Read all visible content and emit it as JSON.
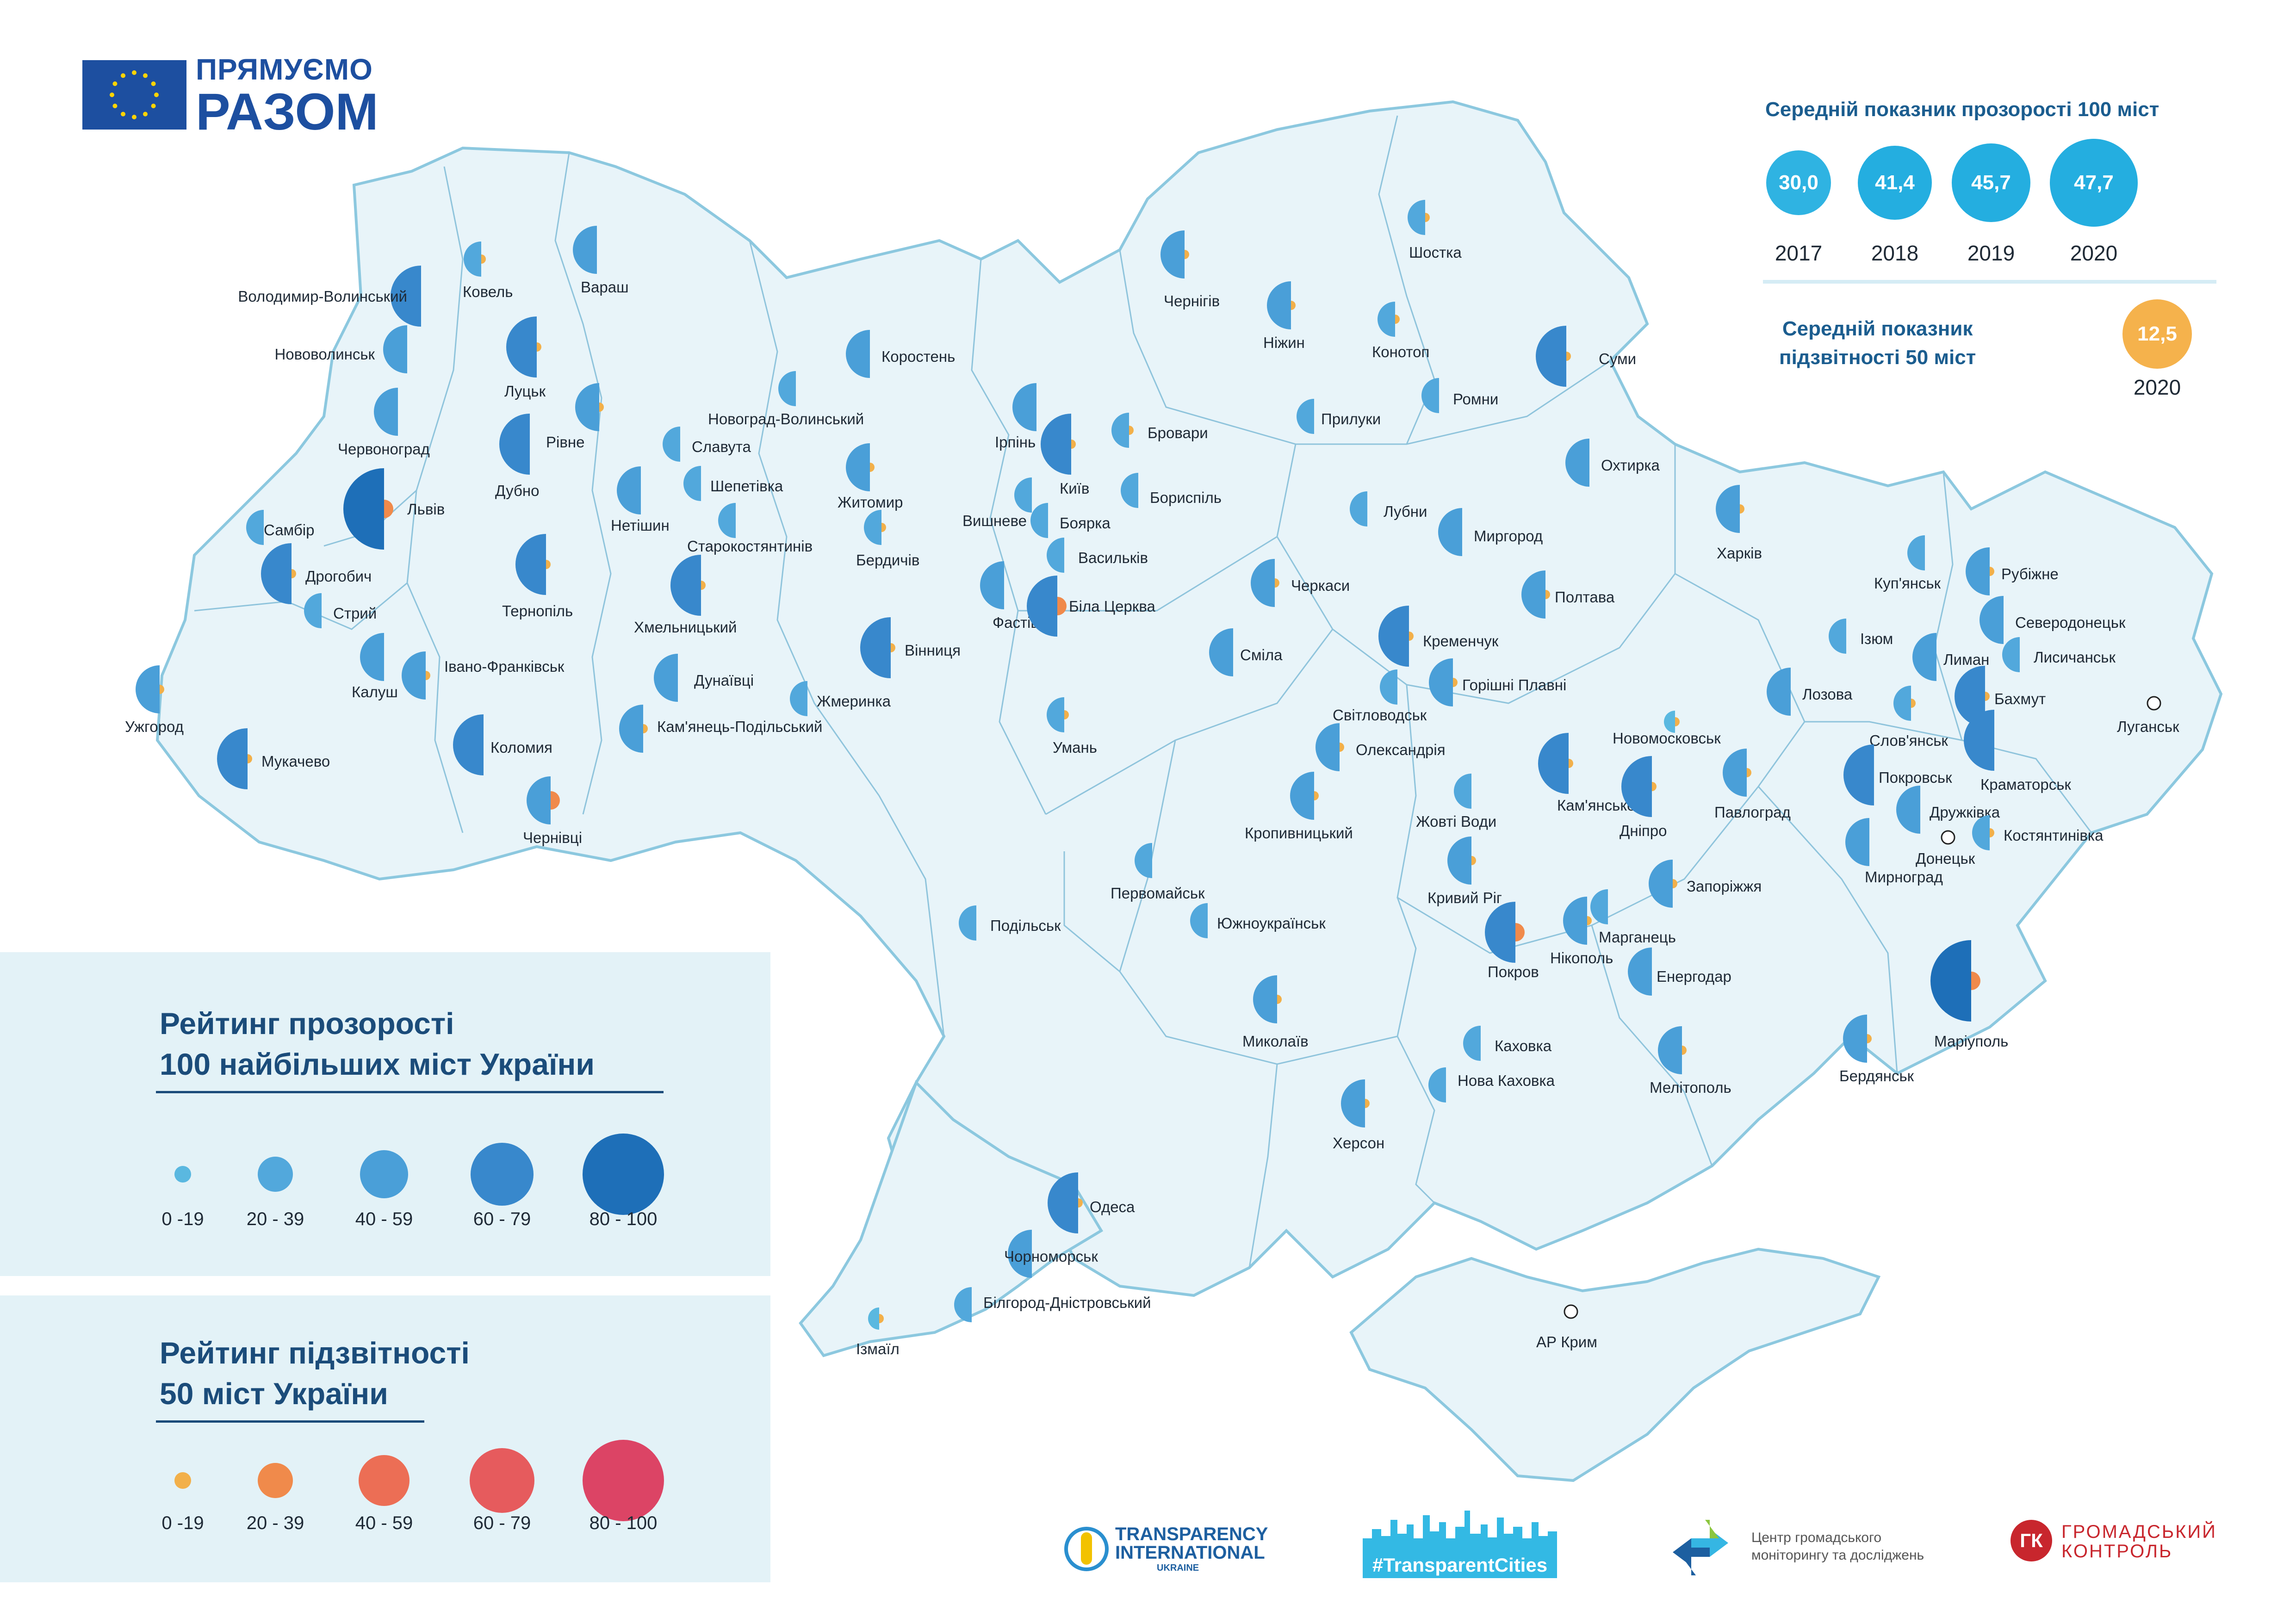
{
  "brand": {
    "line1": "ПРЯМУЄМО",
    "line2": "РАЗОМ"
  },
  "stats": {
    "transparency_title": "Середній показник прозорості 100 міст",
    "transparency": [
      {
        "year": "2017",
        "value": "30,0"
      },
      {
        "year": "2018",
        "value": "41,4"
      },
      {
        "year": "2019",
        "value": "45,7"
      },
      {
        "year": "2020",
        "value": "47,7"
      }
    ],
    "accountability_title_1": "Середній показник",
    "accountability_title_2": "підзвітності 50 міст",
    "accountability": {
      "year": "2020",
      "value": "12,5"
    }
  },
  "legend_transparency": {
    "title_1": "Рейтинг прозорості",
    "title_2": "100 найбільших міст України",
    "items": [
      "0 -19",
      "20 - 39",
      "40 - 59",
      "60 - 79",
      "80 - 100"
    ]
  },
  "legend_accountability": {
    "title_1": "Рейтинг підзвітності",
    "title_2": "50 міст України",
    "items": [
      "0 -19",
      "20 - 39",
      "40 - 59",
      "60 - 79",
      "80 - 100"
    ]
  },
  "colors": {
    "transparency": [
      "#5ab8e0",
      "#52a8dc",
      "#4a9fd8",
      "#3888cc",
      "#1e6fb8"
    ],
    "accountability": [
      "#f2b04a",
      "#f08a4b",
      "#ec6e55",
      "#e65b5d",
      "#dc4465"
    ]
  },
  "footer": {
    "ti_line1": "TRANSPARENCY",
    "ti_line2": "INTERNATIONAL",
    "ti_line3": "UKRAINE",
    "hashtag": "#TransparentCities",
    "cgmd_line1": "Центр громадського",
    "cgmd_line2": "моніторингу та досліджень",
    "gk_mark": "ГК",
    "gk_line1": "ГРОМАДСЬКИЙ",
    "gk_line2": "КОНТРОЛЬ"
  },
  "cities": [
    {
      "name": "Володимир-Волинський",
      "t": 3
    },
    {
      "name": "Ковель",
      "t": 1,
      "a": 0
    },
    {
      "name": "Вараш",
      "t": 2
    },
    {
      "name": "Нововолинськ",
      "t": 2
    },
    {
      "name": "Луцьк",
      "t": 3,
      "a": 0
    },
    {
      "name": "Червоноград",
      "t": 2
    },
    {
      "name": "Рівне",
      "t": 2,
      "a": 0
    },
    {
      "name": "Дубно",
      "t": 3
    },
    {
      "name": "Львів",
      "t": 4,
      "a": 1
    },
    {
      "name": "Самбір",
      "t": 1
    },
    {
      "name": "Дрогобич",
      "t": 3,
      "a": 0
    },
    {
      "name": "Стрий",
      "t": 1
    },
    {
      "name": "Тернопіль",
      "t": 3,
      "a": 0
    },
    {
      "name": "Калуш",
      "t": 2
    },
    {
      "name": "Івано-Франківськ",
      "t": 2,
      "a": 0
    },
    {
      "name": "Ужгород",
      "t": 2,
      "a": 0
    },
    {
      "name": "Мукачево",
      "t": 3,
      "a": 0
    },
    {
      "name": "Коломия",
      "t": 3
    },
    {
      "name": "Чернівці",
      "t": 2,
      "a": 1
    },
    {
      "name": "Нетішин",
      "t": 2
    },
    {
      "name": "Славута",
      "t": 1
    },
    {
      "name": "Шепетівка",
      "t": 1
    },
    {
      "name": "Старокостянтинів",
      "t": 1
    },
    {
      "name": "Хмельницький",
      "t": 3,
      "a": 0
    },
    {
      "name": "Дунаївці",
      "t": 2
    },
    {
      "name": "Кам'янець-Подільський",
      "t": 2,
      "a": 0
    },
    {
      "name": "Новоград-Волинський",
      "t": 1
    },
    {
      "name": "Коростень",
      "t": 2
    },
    {
      "name": "Житомир",
      "t": 2,
      "a": 0
    },
    {
      "name": "Бердичів",
      "t": 1,
      "a": 0
    },
    {
      "name": "Вінниця",
      "t": 3,
      "a": 0
    },
    {
      "name": "Жмеринка",
      "t": 1
    },
    {
      "name": "Ірпінь",
      "t": 2
    },
    {
      "name": "Київ",
      "t": 3,
      "a": 0
    },
    {
      "name": "Бровари",
      "t": 1,
      "a": 0
    },
    {
      "name": "Бориспіль",
      "t": 1
    },
    {
      "name": "Вишневе",
      "t": 1
    },
    {
      "name": "Боярка",
      "t": 1
    },
    {
      "name": "Васильків",
      "t": 1
    },
    {
      "name": "Фастів",
      "t": 2
    },
    {
      "name": "Біла Церква",
      "t": 3,
      "a": 1
    },
    {
      "name": "Умань",
      "t": 1,
      "a": 0
    },
    {
      "name": "Чернігів",
      "t": 2,
      "a": 0
    },
    {
      "name": "Ніжин",
      "t": 2,
      "a": 0
    },
    {
      "name": "Шостка",
      "t": 1,
      "a": 0
    },
    {
      "name": "Конотоп",
      "t": 1,
      "a": 0
    },
    {
      "name": "Суми",
      "t": 3,
      "a": 0
    },
    {
      "name": "Ромни",
      "t": 1
    },
    {
      "name": "Прилуки",
      "t": 1
    },
    {
      "name": "Охтирка",
      "t": 2
    },
    {
      "name": "Лубни",
      "t": 1
    },
    {
      "name": "Миргород",
      "t": 2
    },
    {
      "name": "Черкаси",
      "t": 2,
      "a": 0
    },
    {
      "name": "Сміла",
      "t": 2
    },
    {
      "name": "Полтава",
      "t": 2,
      "a": 0
    },
    {
      "name": "Кременчук",
      "t": 3,
      "a": 0
    },
    {
      "name": "Світловодськ",
      "t": 1
    },
    {
      "name": "Горішні Плавні",
      "t": 2,
      "a": 0
    },
    {
      "name": "Олександрія",
      "t": 2,
      "a": 0
    },
    {
      "name": "Кропивницький",
      "t": 2,
      "a": 0
    },
    {
      "name": "Жовті Води",
      "t": 1
    },
    {
      "name": "Кам'янське",
      "t": 3,
      "a": 0
    },
    {
      "name": "Новомосковськ",
      "t": 0,
      "a": 0
    },
    {
      "name": "Дніпро",
      "t": 3,
      "a": 0
    },
    {
      "name": "Павлоград",
      "t": 2,
      "a": 0
    },
    {
      "name": "Харків",
      "t": 2,
      "a": 0
    },
    {
      "name": "Лозова",
      "t": 2
    },
    {
      "name": "Ізюм",
      "t": 1
    },
    {
      "name": "Куп'янськ",
      "t": 1
    },
    {
      "name": "Рубіжне",
      "t": 2,
      "a": 0
    },
    {
      "name": "Северодонецьк",
      "t": 2
    },
    {
      "name": "Лисичанськ",
      "t": 1
    },
    {
      "name": "Лиман",
      "t": 2
    },
    {
      "name": "Бахмут",
      "t": 3,
      "a": 0
    },
    {
      "name": "Слов'янськ",
      "t": 1,
      "a": 0
    },
    {
      "name": "Краматорськ",
      "t": 3
    },
    {
      "name": "Покровськ",
      "t": 3
    },
    {
      "name": "Дружківка",
      "t": 2
    },
    {
      "name": "Мирноград",
      "t": 2
    },
    {
      "name": "Костянтинівка",
      "t": 1,
      "a": 0
    },
    {
      "name": "Донецьк",
      "t": -1
    },
    {
      "name": "Луганськ",
      "t": -1
    },
    {
      "name": "Первомайськ",
      "t": 1
    },
    {
      "name": "Южноукраїнськ",
      "t": 1
    },
    {
      "name": "Подільськ",
      "t": 1
    },
    {
      "name": "Кривий Ріг",
      "t": 2,
      "a": 0
    },
    {
      "name": "Покров",
      "t": 3,
      "a": 1
    },
    {
      "name": "Нікополь",
      "t": 2,
      "a": 0
    },
    {
      "name": "Марганець",
      "t": 1
    },
    {
      "name": "Запоріжжя",
      "t": 2,
      "a": 0
    },
    {
      "name": "Енергодар",
      "t": 2
    },
    {
      "name": "Миколаїв",
      "t": 2,
      "a": 0
    },
    {
      "name": "Каховка",
      "t": 1
    },
    {
      "name": "Нова Каховка",
      "t": 1
    },
    {
      "name": "Херсон",
      "t": 2,
      "a": 0
    },
    {
      "name": "Мелітополь",
      "t": 2,
      "a": 0
    },
    {
      "name": "Бердянськ",
      "t": 2,
      "a": 0
    },
    {
      "name": "Маріуполь",
      "t": 4,
      "a": 1
    },
    {
      "name": "Одеса",
      "t": 3,
      "a": 0
    },
    {
      "name": "Чорноморськ",
      "t": 2
    },
    {
      "name": "Білгород-Дністровський",
      "t": 1
    },
    {
      "name": "Ізмаїл",
      "t": 0,
      "a": 0
    },
    {
      "name": "АР Крим",
      "t": -1
    }
  ]
}
